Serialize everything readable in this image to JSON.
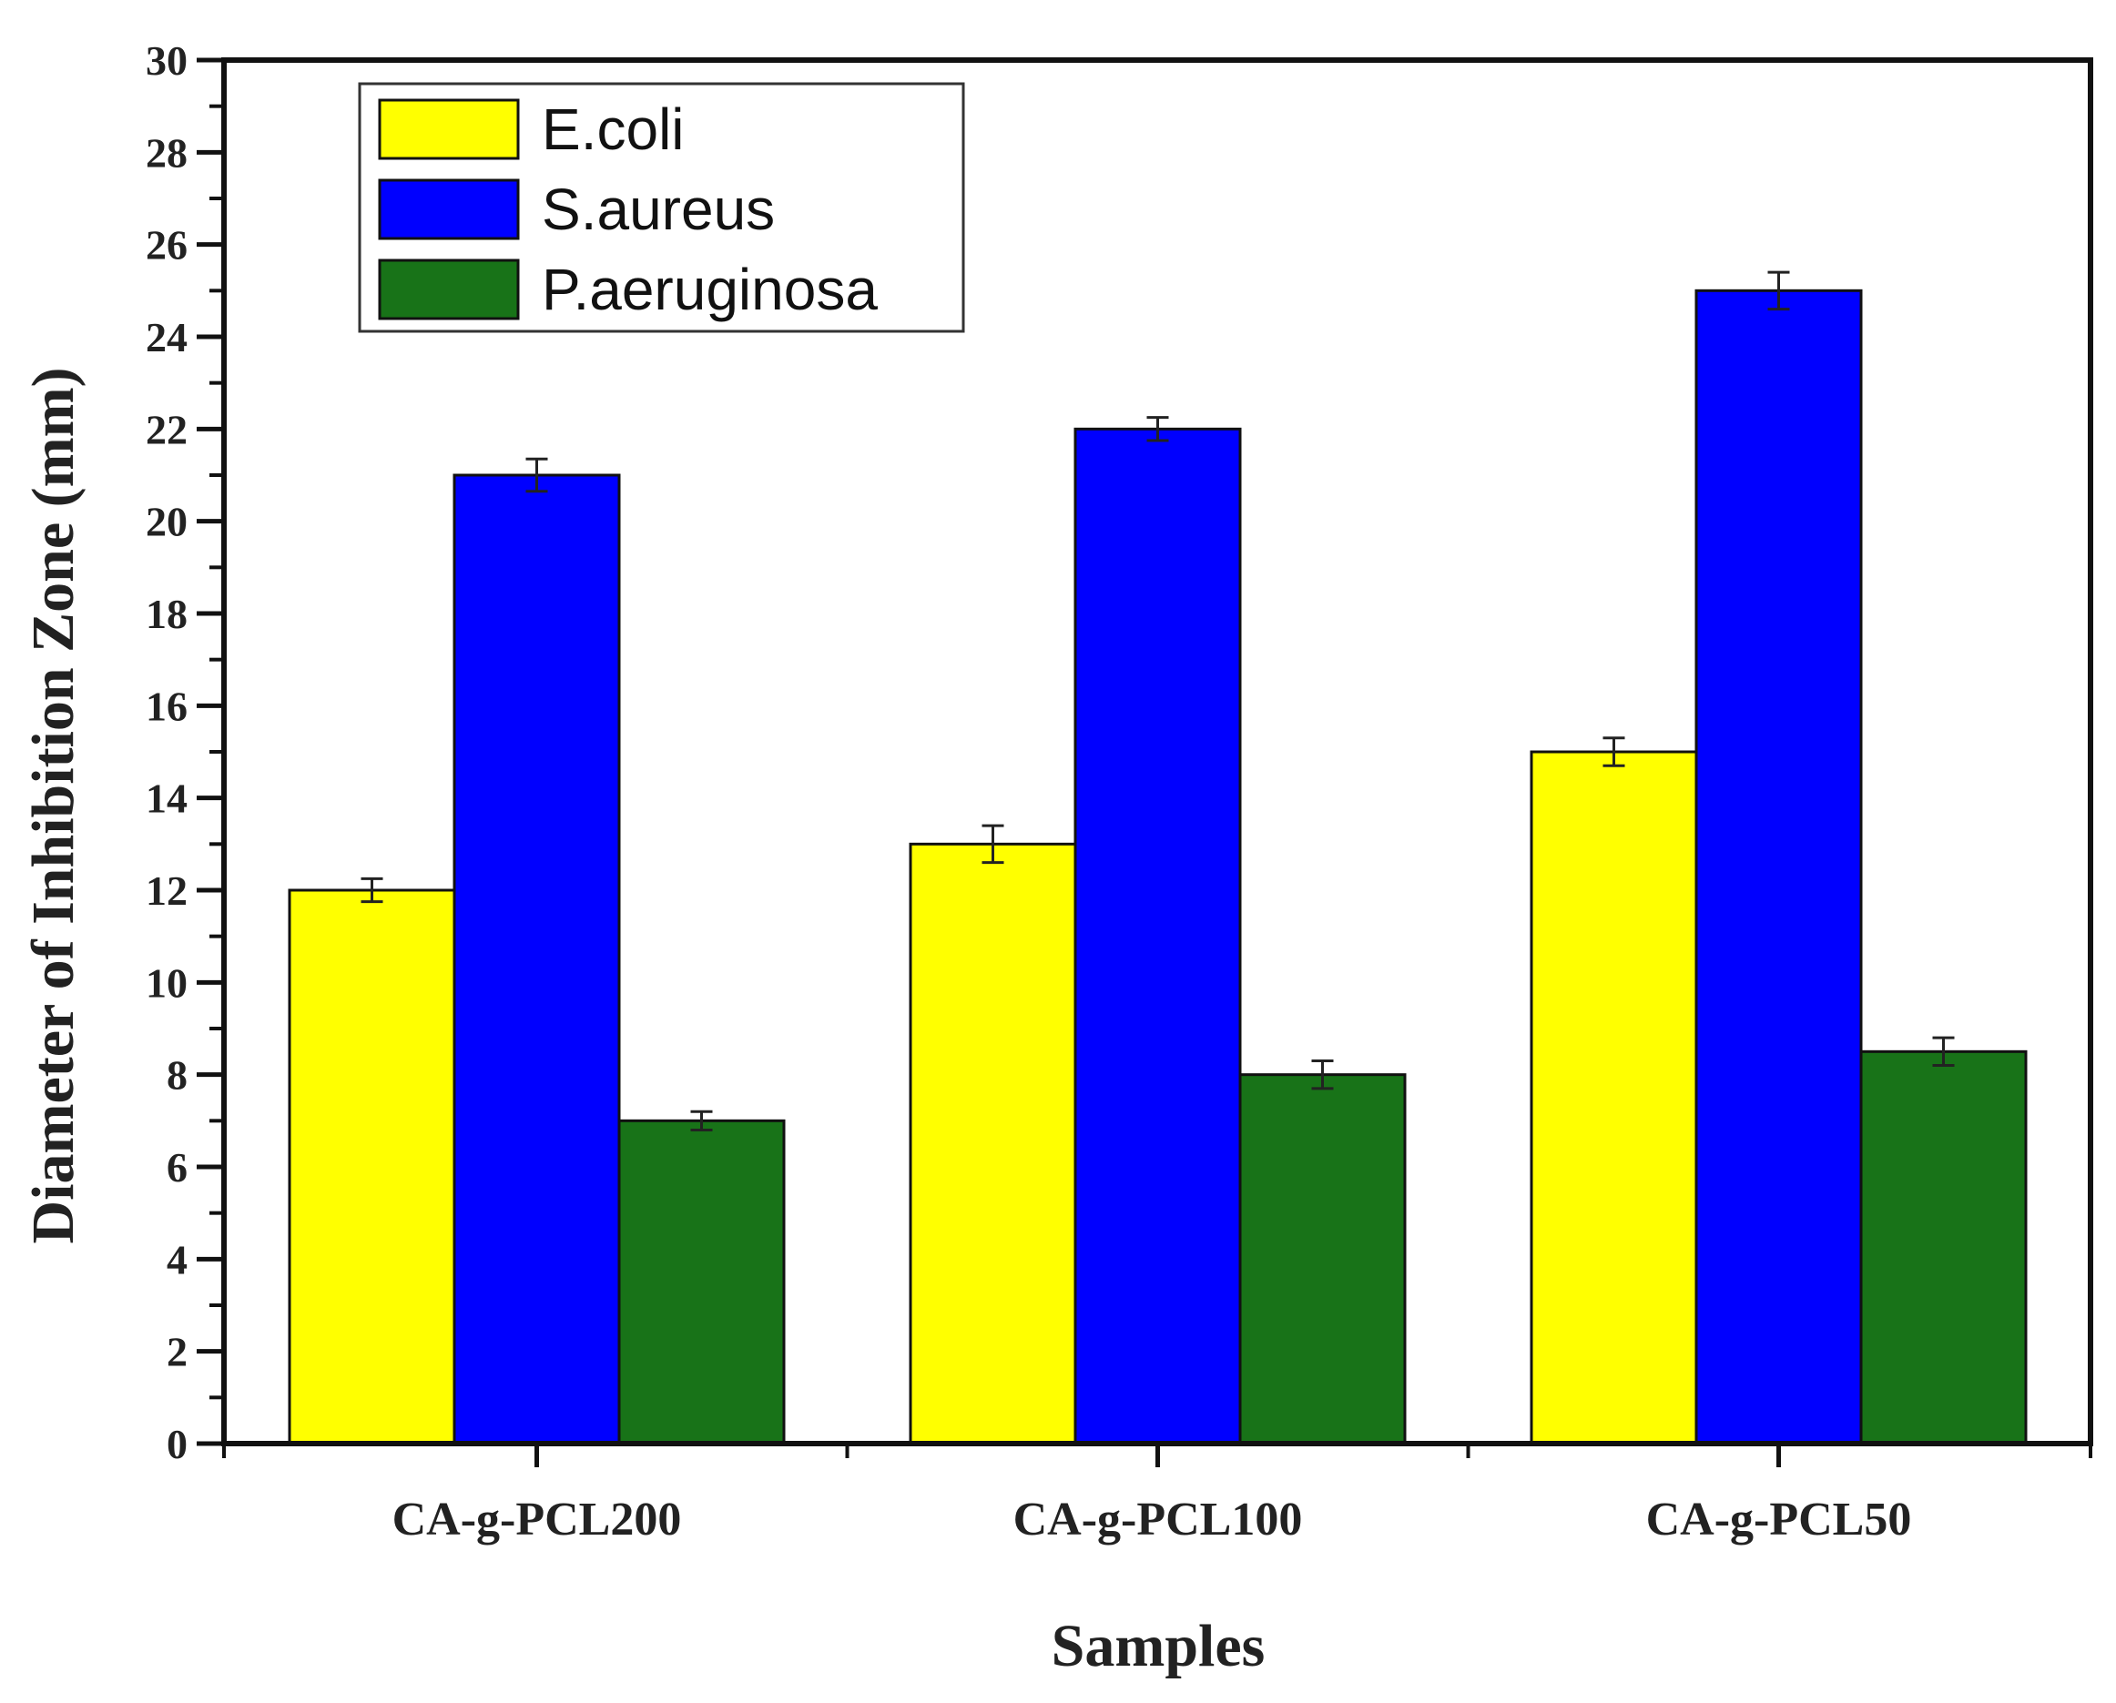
{
  "chart_data": {
    "type": "bar",
    "title": "",
    "xlabel": "Samples",
    "ylabel": "Diameter of Inhibition Zone (mm)",
    "ylim": [
      0,
      30
    ],
    "y_major_step": 2,
    "categories": [
      "CA-g-PCL200",
      "CA-g-PCL100",
      "CA-g-PCL50"
    ],
    "series": [
      {
        "name": "E.coli",
        "color": "#ffff00",
        "values": [
          12,
          13,
          15
        ],
        "errors": [
          0.25,
          0.4,
          0.3
        ]
      },
      {
        "name": "S.aureus",
        "color": "#0000ff",
        "values": [
          21,
          22,
          25
        ],
        "errors": [
          0.35,
          0.25,
          0.4
        ]
      },
      {
        "name": "P.aeruginosa",
        "color": "#187318",
        "values": [
          7,
          8,
          8.5
        ],
        "errors": [
          0.2,
          0.3,
          0.3
        ]
      }
    ],
    "legend_position": "top-left",
    "grid": false
  }
}
